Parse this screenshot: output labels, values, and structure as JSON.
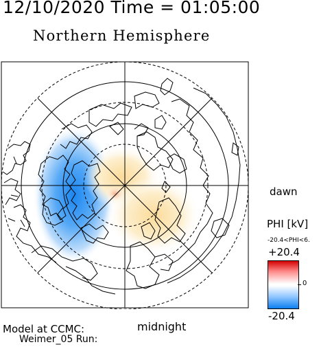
{
  "header": {
    "datetime": "12/10/2020 Time = 01:05:00"
  },
  "map": {
    "title": "Northern Hemisphere",
    "projection": "polar stereographic",
    "dawn_label": "dawn",
    "midnight_label": "midnight",
    "quantity": "electric potential PHI"
  },
  "colorbar": {
    "title": "PHI [kV]",
    "range_text": "-20.4<PHI<6.",
    "max_label": "+20.4",
    "zero_label": "0",
    "min_label": "-20.4",
    "colors": {
      "positive": "#d40000",
      "zero": "#ffffff",
      "negative": "#0a7ff0"
    }
  },
  "footer": {
    "model_label": "Model at CCMC:",
    "run_label": "Weimer_05 Run:"
  }
}
